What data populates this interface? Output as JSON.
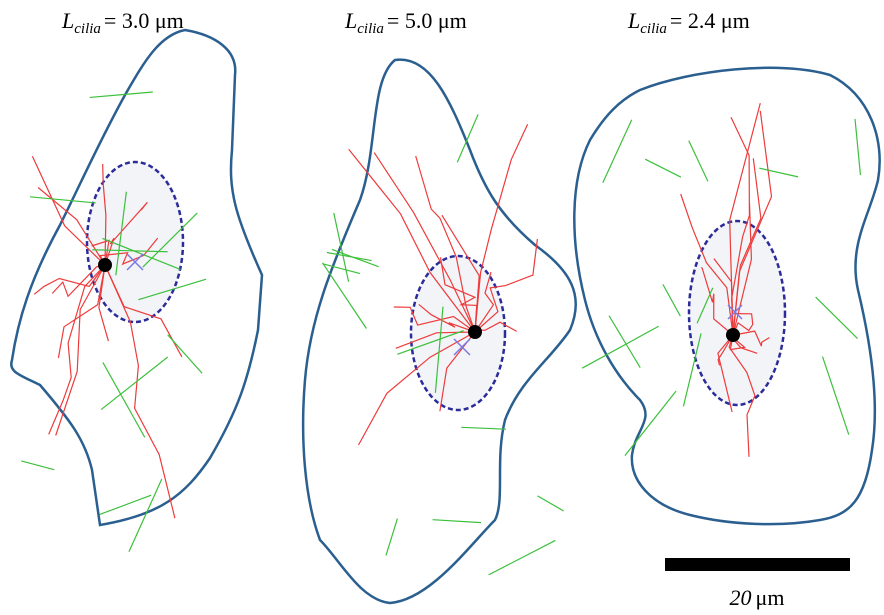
{
  "panels": [
    {
      "symbol": "L",
      "subscript": "cilia",
      "value": "= 3.0 μm"
    },
    {
      "symbol": "L",
      "subscript": "cilia",
      "value": "= 5.0 μm"
    },
    {
      "symbol": "L",
      "subscript": "cilia",
      "value": "= 2.4 μm"
    }
  ],
  "scale_bar": {
    "number": "20",
    "unit": "μm"
  }
}
